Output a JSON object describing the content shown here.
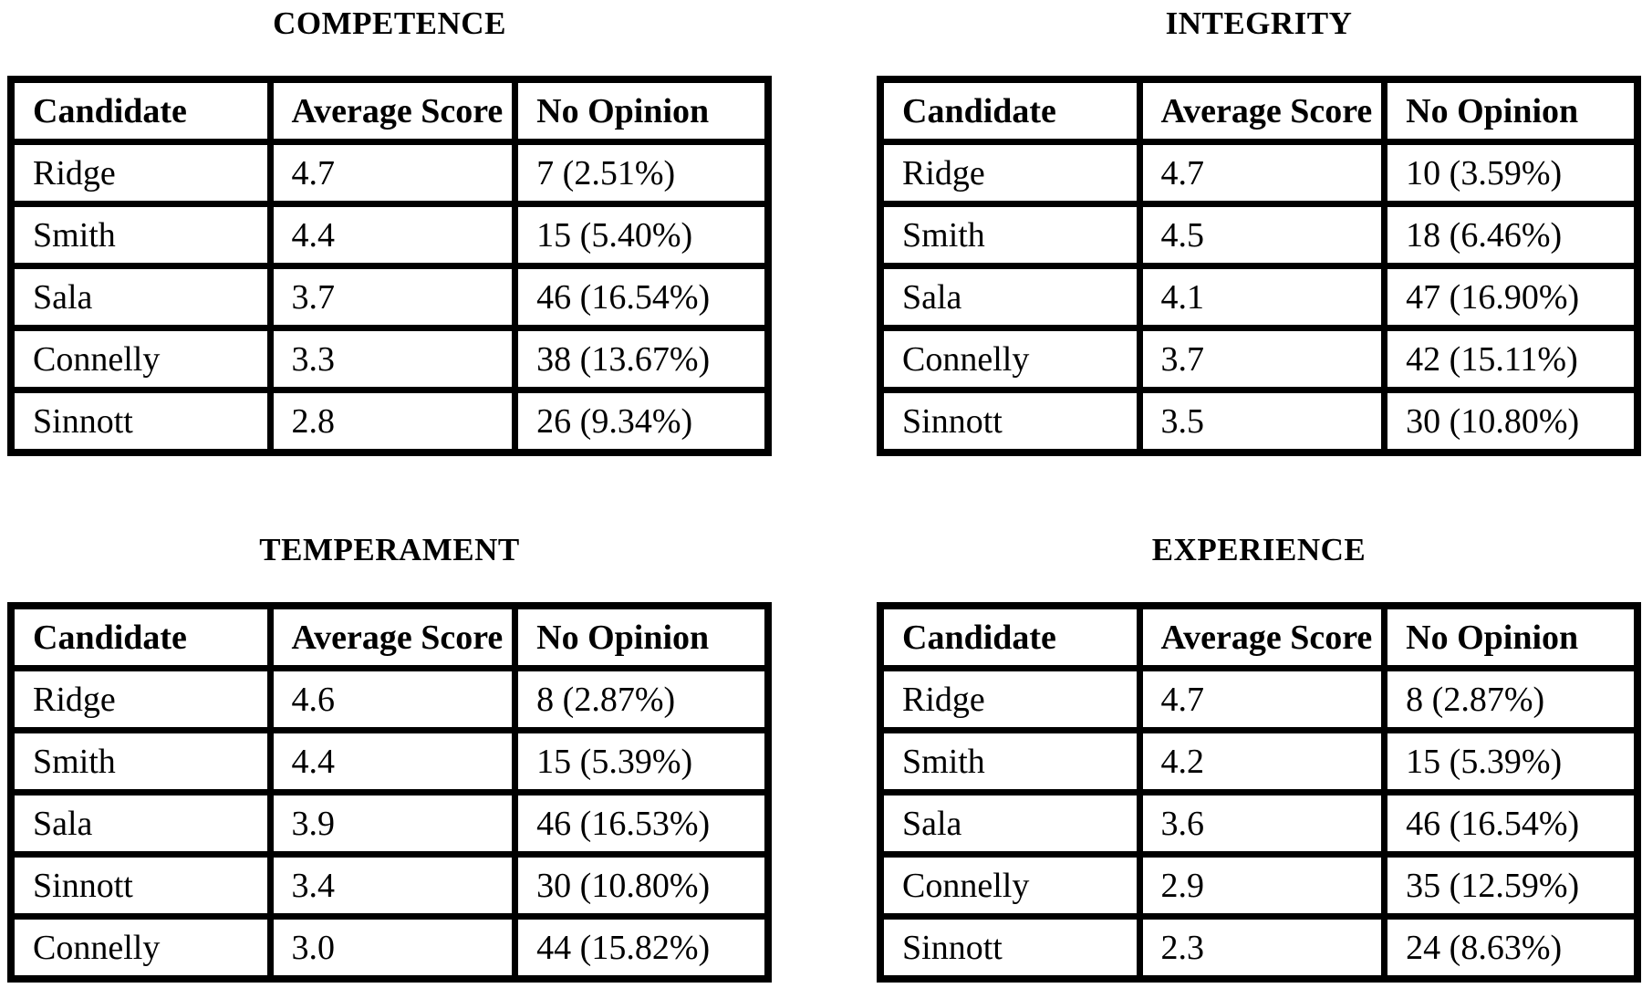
{
  "page": {
    "background_color": "#ffffff",
    "text_color": "#000000",
    "border_color": "#000000"
  },
  "tables": [
    {
      "id": "competence",
      "title": "COMPETENCE",
      "columns": [
        "Candidate",
        "Average Score",
        "No Opinion"
      ],
      "rows": [
        {
          "candidate": "Ridge",
          "average_score": "4.7",
          "no_opinion": "7 (2.51%)"
        },
        {
          "candidate": "Smith",
          "average_score": "4.4",
          "no_opinion": "15 (5.40%)"
        },
        {
          "candidate": "Sala",
          "average_score": "3.7",
          "no_opinion": "46 (16.54%)"
        },
        {
          "candidate": "Connelly",
          "average_score": "3.3",
          "no_opinion": "38 (13.67%)"
        },
        {
          "candidate": "Sinnott",
          "average_score": "2.8",
          "no_opinion": "26 (9.34%)"
        }
      ]
    },
    {
      "id": "integrity",
      "title": "INTEGRITY",
      "columns": [
        "Candidate",
        "Average Score",
        "No Opinion"
      ],
      "rows": [
        {
          "candidate": "Ridge",
          "average_score": "4.7",
          "no_opinion": "10 (3.59%)"
        },
        {
          "candidate": "Smith",
          "average_score": "4.5",
          "no_opinion": "18 (6.46%)"
        },
        {
          "candidate": "Sala",
          "average_score": "4.1",
          "no_opinion": "47 (16.90%)"
        },
        {
          "candidate": "Connelly",
          "average_score": "3.7",
          "no_opinion": "42 (15.11%)"
        },
        {
          "candidate": "Sinnott",
          "average_score": "3.5",
          "no_opinion": "30 (10.80%)"
        }
      ]
    },
    {
      "id": "temperament",
      "title": "TEMPERAMENT",
      "columns": [
        "Candidate",
        "Average Score",
        "No Opinion"
      ],
      "rows": [
        {
          "candidate": "Ridge",
          "average_score": "4.6",
          "no_opinion": "8 (2.87%)"
        },
        {
          "candidate": "Smith",
          "average_score": "4.4",
          "no_opinion": "15 (5.39%)"
        },
        {
          "candidate": "Sala",
          "average_score": "3.9",
          "no_opinion": "46 (16.53%)"
        },
        {
          "candidate": "Sinnott",
          "average_score": "3.4",
          "no_opinion": "30 (10.80%)"
        },
        {
          "candidate": "Connelly",
          "average_score": "3.0",
          "no_opinion": "44 (15.82%)"
        }
      ]
    },
    {
      "id": "experience",
      "title": "EXPERIENCE",
      "columns": [
        "Candidate",
        "Average Score",
        "No Opinion"
      ],
      "rows": [
        {
          "candidate": "Ridge",
          "average_score": "4.7",
          "no_opinion": "8 (2.87%)"
        },
        {
          "candidate": "Smith",
          "average_score": "4.2",
          "no_opinion": "15 (5.39%)"
        },
        {
          "candidate": "Sala",
          "average_score": "3.6",
          "no_opinion": "46 (16.54%)"
        },
        {
          "candidate": "Connelly",
          "average_score": "2.9",
          "no_opinion": "35 (12.59%)"
        },
        {
          "candidate": "Sinnott",
          "average_score": "2.3",
          "no_opinion": "24 (8.63%)"
        }
      ]
    }
  ]
}
